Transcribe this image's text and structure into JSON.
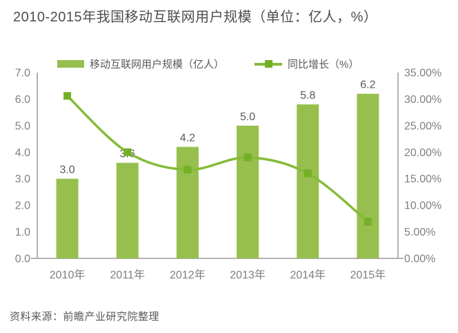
{
  "page": {
    "title": "2010-2015年我国移动互联网用户规模（单位：亿人，%）",
    "source": "资料来源：前瞻产业研究院整理"
  },
  "colors": {
    "bar_fill": "#96bf4d",
    "line_stroke": "#86bb38",
    "marker_fill": "#74b024",
    "axis_line": "#999999",
    "tick_text": "#7f7f7f",
    "value_label_text": "#595959",
    "title_text": "#4d4d4d"
  },
  "chart_data": {
    "type": "bar",
    "subtype": "combo-bar-line-dual-axis",
    "title": "2010-2015年我国移动互联网用户规模（单位：亿人，%）",
    "categories": [
      "2010年",
      "2011年",
      "2012年",
      "2013年",
      "2014年",
      "2015年"
    ],
    "series": [
      {
        "name": "移动互联网用户规模（亿人）",
        "type": "bar",
        "axis": "left",
        "values": [
          3.0,
          3.6,
          4.2,
          5.0,
          5.8,
          6.2
        ],
        "value_labels": [
          "3.0",
          "3.6",
          "4.2",
          "5.0",
          "5.8",
          "6.2"
        ],
        "color": "#96bf4d"
      },
      {
        "name": "同比增长（%）",
        "type": "line",
        "axis": "right",
        "values": [
          30.6,
          20.0,
          16.7,
          19.0,
          16.0,
          6.9
        ],
        "color": "#86bb38",
        "marker": "square",
        "marker_color": "#74b024"
      }
    ],
    "left_axis": {
      "min": 0,
      "max": 7,
      "tick_labels": [
        "7.0",
        "6.0",
        "5.0",
        "4.0",
        "3.0",
        "2.0",
        "1.0",
        "0.0"
      ]
    },
    "right_axis": {
      "min": 0,
      "max": 35,
      "tick_labels": [
        "35.00%",
        "30.00%",
        "25.00%",
        "20.00%",
        "15.00%",
        "10.00%",
        "5.00%",
        "0.00%"
      ]
    },
    "grid": false,
    "legend_position": "top",
    "xlabel": "",
    "ylabel_left": "亿人",
    "ylabel_right": "%"
  }
}
